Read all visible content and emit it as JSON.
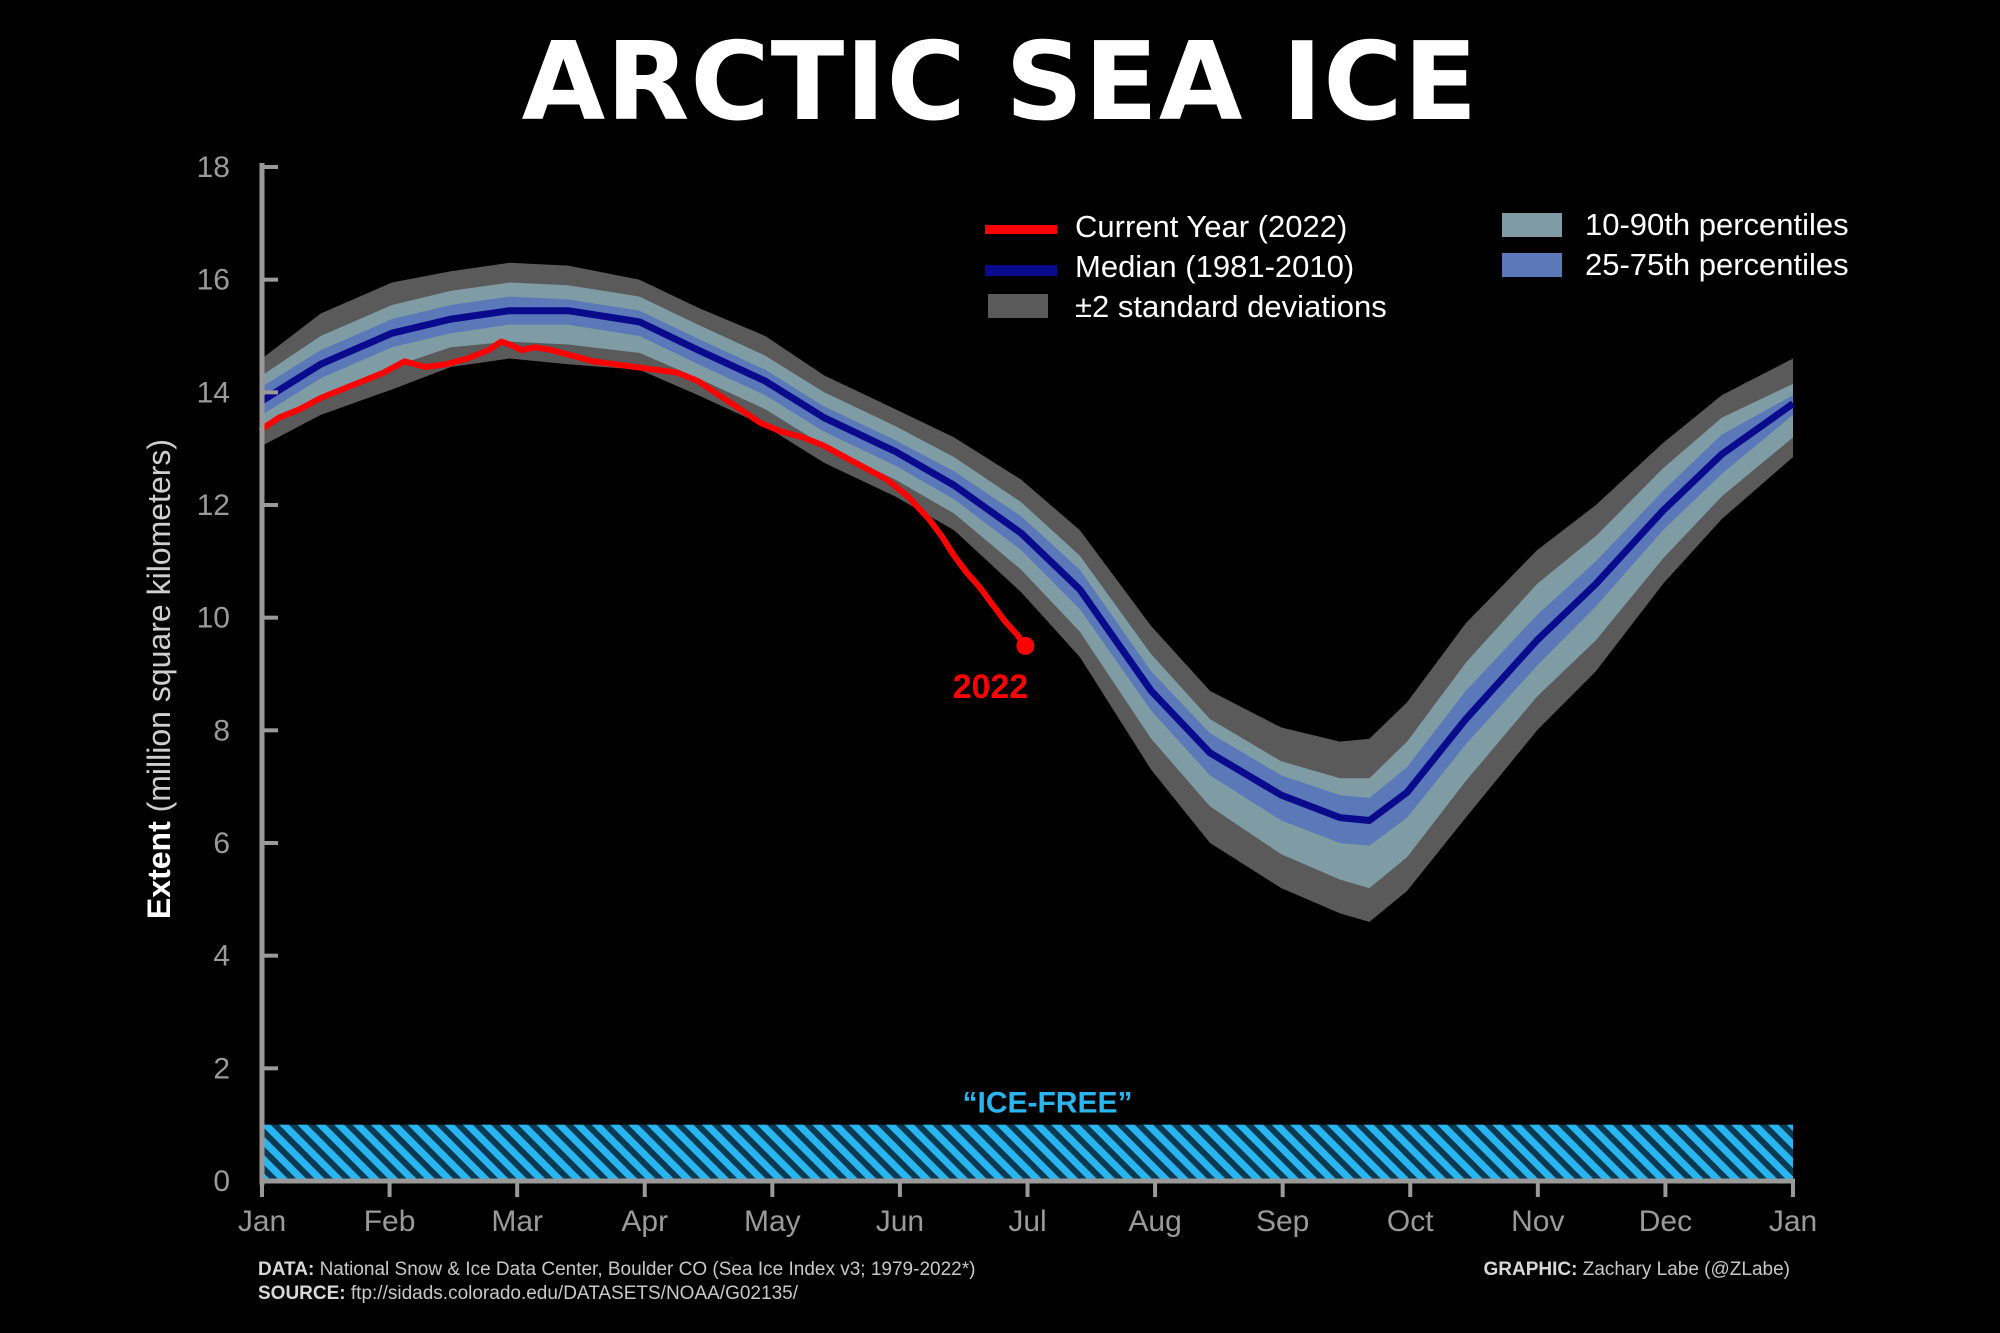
{
  "title": "ARCTIC SEA ICE",
  "chart_data": {
    "type": "line",
    "ylabel_bold": "Extent",
    "ylabel_rest": "(million square kilometers)",
    "yticks": [
      0,
      2,
      4,
      6,
      8,
      10,
      12,
      14,
      16,
      18
    ],
    "ylim": [
      0,
      18
    ],
    "xticks": [
      "Jan",
      "Feb",
      "Mar",
      "Apr",
      "May",
      "Jun",
      "Jul",
      "Aug",
      "Sep",
      "Oct",
      "Nov",
      "Dec",
      "Jan"
    ],
    "xlim": [
      1,
      366
    ],
    "grid": false,
    "legend_position": "top-right",
    "legend": {
      "current": "Current Year (2022)",
      "median": "Median (1981-2010)",
      "std": "±2 standard deviations",
      "p1090": "10-90th percentiles",
      "p2575": "25-75th percentiles"
    },
    "ice_free": {
      "label": "“ICE-FREE”",
      "range": [
        0,
        1
      ]
    },
    "end_label": "2022",
    "median": {
      "x": [
        1,
        15,
        32,
        46,
        60,
        74,
        91,
        105,
        121,
        135,
        152,
        166,
        182,
        196,
        213,
        227,
        244,
        258,
        265,
        274,
        288,
        305,
        319,
        335,
        349,
        366
      ],
      "y": [
        13.85,
        14.5,
        15.05,
        15.3,
        15.45,
        15.45,
        15.25,
        14.75,
        14.2,
        13.55,
        12.95,
        12.35,
        11.5,
        10.5,
        8.7,
        7.6,
        6.85,
        6.45,
        6.4,
        6.9,
        8.2,
        9.6,
        10.6,
        11.9,
        12.9,
        13.8
      ]
    },
    "std_band": {
      "x": [
        1,
        15,
        32,
        46,
        60,
        74,
        91,
        105,
        121,
        135,
        152,
        166,
        182,
        196,
        213,
        227,
        244,
        258,
        265,
        274,
        288,
        305,
        319,
        335,
        349,
        366
      ],
      "upper": [
        14.6,
        15.4,
        15.95,
        16.15,
        16.3,
        16.25,
        16.0,
        15.5,
        15.0,
        14.3,
        13.7,
        13.2,
        12.45,
        11.55,
        9.85,
        8.7,
        8.05,
        7.8,
        7.85,
        8.5,
        9.9,
        11.2,
        12.0,
        13.1,
        13.95,
        14.6
      ],
      "lower": [
        13.05,
        13.6,
        14.05,
        14.45,
        14.6,
        14.5,
        14.4,
        13.95,
        13.4,
        12.75,
        12.15,
        11.55,
        10.45,
        9.3,
        7.3,
        6.0,
        5.2,
        4.75,
        4.6,
        5.15,
        6.45,
        8.0,
        9.05,
        10.6,
        11.75,
        12.85
      ]
    },
    "p1090_band": {
      "x": [
        1,
        15,
        32,
        46,
        60,
        74,
        91,
        105,
        121,
        135,
        152,
        166,
        182,
        196,
        213,
        227,
        244,
        258,
        265,
        274,
        288,
        305,
        319,
        335,
        349,
        366
      ],
      "upper": [
        14.3,
        15.0,
        15.55,
        15.8,
        15.95,
        15.9,
        15.7,
        15.2,
        14.65,
        14.0,
        13.4,
        12.85,
        12.05,
        11.1,
        9.35,
        8.2,
        7.45,
        7.15,
        7.15,
        7.8,
        9.2,
        10.6,
        11.45,
        12.65,
        13.55,
        14.15
      ],
      "lower": [
        13.3,
        13.95,
        14.45,
        14.8,
        14.9,
        14.85,
        14.7,
        14.25,
        13.7,
        13.05,
        12.45,
        11.85,
        10.85,
        9.75,
        7.85,
        6.65,
        5.8,
        5.35,
        5.2,
        5.75,
        7.1,
        8.6,
        9.6,
        11.05,
        12.15,
        13.2
      ]
    },
    "p2575_band": {
      "x": [
        1,
        15,
        32,
        46,
        60,
        74,
        91,
        105,
        121,
        135,
        152,
        166,
        182,
        196,
        213,
        227,
        244,
        258,
        265,
        274,
        288,
        305,
        319,
        335,
        349,
        366
      ],
      "upper": [
        14.1,
        14.75,
        15.3,
        15.55,
        15.7,
        15.65,
        15.45,
        14.95,
        14.4,
        13.75,
        13.15,
        12.6,
        11.8,
        10.85,
        9.05,
        7.95,
        7.2,
        6.85,
        6.8,
        7.35,
        8.7,
        10.05,
        11.0,
        12.25,
        13.25,
        13.95
      ],
      "lower": [
        13.6,
        14.25,
        14.8,
        15.05,
        15.2,
        15.2,
        15.0,
        14.5,
        13.95,
        13.3,
        12.7,
        12.1,
        11.2,
        10.15,
        8.35,
        7.2,
        6.4,
        6.0,
        5.95,
        6.45,
        7.75,
        9.15,
        10.2,
        11.55,
        12.55,
        13.6
      ]
    },
    "current_2022": {
      "x": [
        1,
        5,
        10,
        15,
        20,
        25,
        30,
        35,
        40,
        45,
        50,
        55,
        58,
        60,
        63,
        66,
        70,
        75,
        80,
        85,
        90,
        95,
        100,
        105,
        110,
        115,
        120,
        125,
        130,
        135,
        140,
        145,
        150,
        155,
        160,
        163,
        166,
        169,
        172,
        175,
        178,
        181,
        183
      ],
      "y": [
        13.35,
        13.55,
        13.7,
        13.9,
        14.05,
        14.2,
        14.35,
        14.55,
        14.45,
        14.5,
        14.6,
        14.75,
        14.9,
        14.85,
        14.75,
        14.8,
        14.75,
        14.65,
        14.55,
        14.5,
        14.45,
        14.4,
        14.35,
        14.2,
        13.95,
        13.7,
        13.45,
        13.3,
        13.2,
        13.05,
        12.85,
        12.65,
        12.45,
        12.15,
        11.75,
        11.45,
        11.1,
        10.8,
        10.55,
        10.25,
        9.95,
        9.7,
        9.5
      ]
    },
    "colors": {
      "current": "#ff0000",
      "median": "#0a0a8c",
      "std": "#5a5a5a",
      "p1090": "#7f9ca4",
      "p2575": "#5b79b8",
      "ice_free": "#29b6f0",
      "axis": "#9a9a9a"
    }
  },
  "footer": {
    "data_label": "DATA:",
    "data_text": "National Snow & Ice Data Center, Boulder CO (Sea Ice Index v3; 1979-2022*)",
    "source_label": "SOURCE:",
    "source_text": "ftp://sidads.colorado.edu/DATASETS/NOAA/G02135/",
    "graphic_label": "GRAPHIC:",
    "graphic_text": "Zachary Labe (@ZLabe)"
  }
}
